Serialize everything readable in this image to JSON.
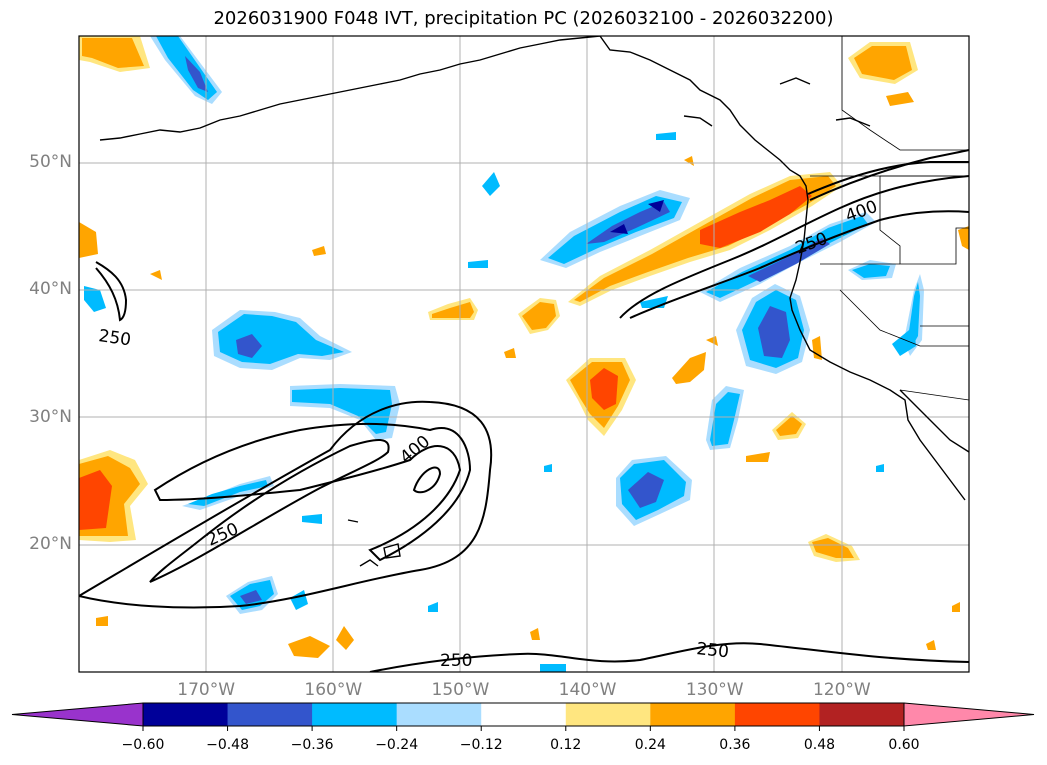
{
  "title": "2026031900 F048 IVT, precipitation PC (2026032100 - 2026032200)",
  "map": {
    "lat_labels": [
      {
        "text": "50°N",
        "lat": 50
      },
      {
        "text": "40°N",
        "lat": 40
      },
      {
        "text": "30°N",
        "lat": 30
      },
      {
        "text": "20°N",
        "lat": 20
      }
    ],
    "lon_labels": [
      {
        "text": "170°W",
        "lon": -170
      },
      {
        "text": "160°W",
        "lon": -160
      },
      {
        "text": "150°W",
        "lon": -150
      },
      {
        "text": "140°W",
        "lon": -140
      },
      {
        "text": "130°W",
        "lon": -130
      },
      {
        "text": "120°W",
        "lon": -120
      }
    ],
    "extent": {
      "lon_min": -180,
      "lon_max": -110,
      "lat_min": 10,
      "lat_max": 60
    },
    "ivt_contour_labels": [
      "250",
      "250",
      "400",
      "250",
      "400",
      "250",
      "250"
    ]
  },
  "colorbar": {
    "colors": [
      "#9933cc",
      "#000099",
      "#3355cc",
      "#00bbff",
      "#aaddff",
      "#ffffff",
      "#ffe680",
      "#ffa500",
      "#ff4500",
      "#b22222",
      "#ff88aa"
    ],
    "tick_labels": [
      "−0.60",
      "−0.48",
      "−0.36",
      "−0.24",
      "−0.12",
      "0.12",
      "0.24",
      "0.36",
      "0.48",
      "0.60"
    ]
  }
}
